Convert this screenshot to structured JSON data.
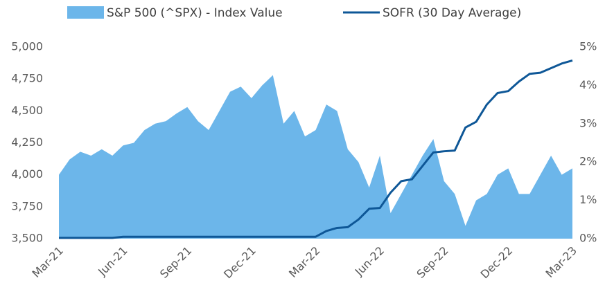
{
  "chart_data": {
    "type": "area_line",
    "categories": [
      "Mar-21",
      null,
      null,
      null,
      null,
      null,
      "Jun-21",
      null,
      null,
      null,
      null,
      null,
      "Sep-21",
      null,
      null,
      null,
      null,
      null,
      "Dec-21",
      null,
      null,
      null,
      null,
      null,
      "Mar-22",
      null,
      null,
      null,
      null,
      null,
      "Jun-22",
      null,
      null,
      null,
      null,
      null,
      "Sep-22",
      null,
      null,
      null,
      null,
      null,
      "Dec-22",
      null,
      null,
      null,
      null,
      null,
      "Mar-23"
    ],
    "series": [
      {
        "name": "S&P 500 (^SPX) - Index Value",
        "color": "#6cb6ea",
        "kind": "area",
        "values": [
          4000,
          4120,
          4180,
          4150,
          4200,
          4150,
          4230,
          4250,
          4350,
          4400,
          4420,
          4480,
          4530,
          4420,
          4350,
          4500,
          4650,
          4690,
          4600,
          4700,
          4780,
          4400,
          4500,
          4300,
          4350,
          4550,
          4500,
          4200,
          4100,
          3900,
          4150,
          3700,
          3850,
          4000,
          4150,
          4280,
          3950,
          3850,
          3600,
          3800,
          3850,
          4000,
          4050,
          3850,
          3850,
          4000,
          4150,
          4000,
          4050
        ]
      },
      {
        "name": "SOFR (30 Day Average)",
        "color": "#0e5797",
        "kind": "line",
        "axis": "y2",
        "values": [
          0.02,
          0.02,
          0.02,
          0.02,
          0.02,
          0.02,
          0.05,
          0.05,
          0.05,
          0.05,
          0.05,
          0.05,
          0.05,
          0.05,
          0.05,
          0.05,
          0.05,
          0.05,
          0.05,
          0.05,
          0.05,
          0.05,
          0.05,
          0.05,
          0.05,
          0.2,
          0.28,
          0.3,
          0.5,
          0.78,
          0.8,
          1.2,
          1.5,
          1.55,
          1.9,
          2.25,
          2.28,
          2.3,
          2.9,
          3.05,
          3.5,
          3.8,
          3.85,
          4.1,
          4.3,
          4.33,
          4.45,
          4.57,
          4.65
        ]
      }
    ],
    "ylim": [
      3500,
      5000
    ],
    "yticks": [
      {
        "value": 3500,
        "label": "3,500"
      },
      {
        "value": 3750,
        "label": "3,750"
      },
      {
        "value": 4000,
        "label": "4,000"
      },
      {
        "value": 4250,
        "label": "4,250"
      },
      {
        "value": 4500,
        "label": "4,500"
      },
      {
        "value": 4750,
        "label": "4,750"
      },
      {
        "value": 5000,
        "label": "5,000"
      }
    ],
    "y2lim": [
      0,
      5
    ],
    "y2ticks": [
      {
        "value": 0,
        "label": "0%"
      },
      {
        "value": 1,
        "label": "1%"
      },
      {
        "value": 2,
        "label": "2%"
      },
      {
        "value": 3,
        "label": "3%"
      },
      {
        "value": 4,
        "label": "4%"
      },
      {
        "value": 5,
        "label": "5%"
      }
    ],
    "legend": "top"
  }
}
